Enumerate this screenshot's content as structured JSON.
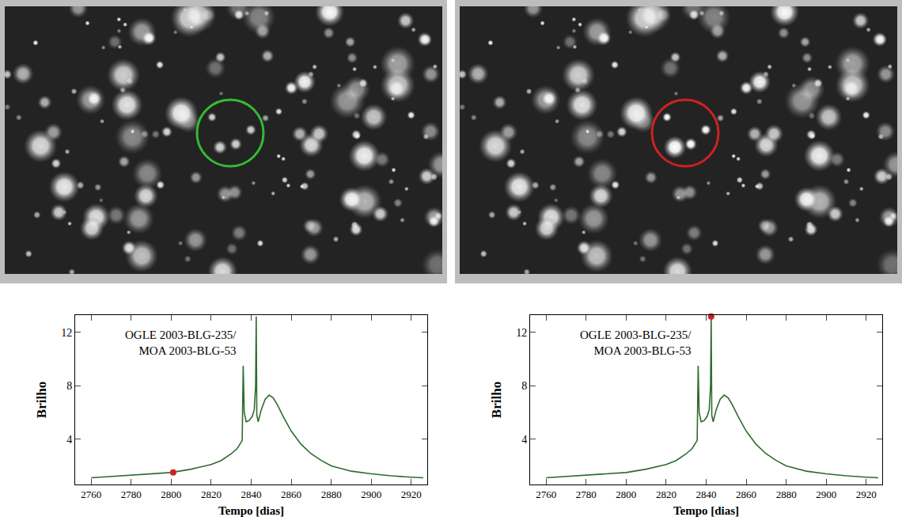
{
  "chart_data": [
    {
      "type": "line",
      "annotation": [
        "OGLE 2003-BLG-235/",
        "MOA 2003-BLG-53"
      ],
      "x_label": "Tempo [dias]",
      "y_label": "Brilho",
      "x": [
        2760,
        2770,
        2780,
        2790,
        2800,
        2810,
        2820,
        2825,
        2830,
        2833,
        2835.5,
        2836,
        2836.5,
        2837.5,
        2839,
        2840.5,
        2841.5,
        2842.2,
        2842.5,
        2842.8,
        2843.5,
        2845,
        2847,
        2849,
        2851,
        2853,
        2856,
        2860,
        2865,
        2870,
        2875,
        2880,
        2890,
        2900,
        2910,
        2920,
        2926
      ],
      "series": [
        {
          "color": "#2f6b2f",
          "values": [
            1.1,
            1.2,
            1.3,
            1.4,
            1.5,
            1.75,
            2.1,
            2.4,
            2.9,
            3.3,
            3.9,
            9.5,
            6.0,
            5.3,
            5.4,
            5.7,
            6.2,
            8.0,
            13.2,
            5.8,
            5.3,
            6.2,
            7.0,
            7.3,
            7.1,
            6.6,
            5.7,
            4.6,
            3.6,
            2.9,
            2.4,
            2.0,
            1.6,
            1.4,
            1.25,
            1.15,
            1.1
          ]
        }
      ],
      "points": [
        {
          "x": 2801,
          "y": 1.5,
          "color": "#cc2222"
        }
      ],
      "xlim": [
        2752,
        2928
      ],
      "xticks": [
        2760,
        2780,
        2800,
        2820,
        2840,
        2860,
        2880,
        2900,
        2920
      ],
      "ylim": [
        0.6,
        13.3
      ],
      "yticks": [
        4,
        8,
        12
      ],
      "circle_color": "#33bb33"
    },
    {
      "type": "line",
      "annotation": [
        "OGLE 2003-BLG-235/",
        "MOA 2003-BLG-53"
      ],
      "x_label": "Tempo [dias]",
      "y_label": "Brilho",
      "x": [
        2760,
        2770,
        2780,
        2790,
        2800,
        2810,
        2820,
        2825,
        2830,
        2833,
        2835.5,
        2836,
        2836.5,
        2837.5,
        2839,
        2840.5,
        2841.5,
        2842.2,
        2842.5,
        2842.8,
        2843.5,
        2845,
        2847,
        2849,
        2851,
        2853,
        2856,
        2860,
        2865,
        2870,
        2875,
        2880,
        2890,
        2900,
        2910,
        2920,
        2926
      ],
      "series": [
        {
          "color": "#2f6b2f",
          "values": [
            1.1,
            1.2,
            1.3,
            1.4,
            1.5,
            1.75,
            2.1,
            2.4,
            2.9,
            3.3,
            3.9,
            9.5,
            6.0,
            5.3,
            5.4,
            5.7,
            6.2,
            8.0,
            13.2,
            5.8,
            5.3,
            6.2,
            7.0,
            7.3,
            7.1,
            6.6,
            5.7,
            4.6,
            3.6,
            2.9,
            2.4,
            2.0,
            1.6,
            1.4,
            1.25,
            1.15,
            1.1
          ]
        }
      ],
      "points": [
        {
          "x": 2842.5,
          "y": 13.2,
          "color": "#cc2222"
        }
      ],
      "xlim": [
        2752,
        2928
      ],
      "xticks": [
        2760,
        2780,
        2800,
        2820,
        2840,
        2860,
        2880,
        2900,
        2920
      ],
      "ylim": [
        0.6,
        13.3
      ],
      "yticks": [
        4,
        8,
        12
      ],
      "circle_color": "#cc2222"
    }
  ]
}
